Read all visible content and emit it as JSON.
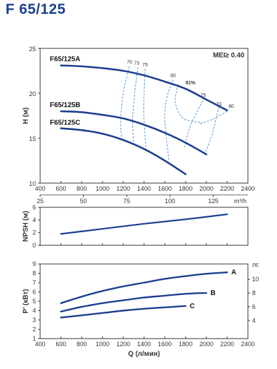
{
  "title": "F 65/125",
  "colors": {
    "curve": "#1a3f8f",
    "efficiency": "#3a8fd6",
    "frame": "#333333"
  },
  "chart_data": [
    {
      "type": "line",
      "id": "head",
      "xlabel": "",
      "ylabel": "H (м)",
      "xlim": [
        400,
        2400
      ],
      "ylim": [
        10,
        25
      ],
      "xticks": [
        400,
        600,
        800,
        1000,
        1200,
        1400,
        1600,
        1800,
        2000,
        2200,
        2400
      ],
      "yticks": [
        10,
        15,
        20,
        25
      ],
      "secondary_x": {
        "label": "m³/h",
        "range": [
          25,
          145
        ],
        "ticks": [
          25,
          50,
          75,
          100,
          125
        ]
      },
      "annotation": "MEI≥ 0.40",
      "series": [
        {
          "name": "F65/125A",
          "x": [
            600,
            800,
            1000,
            1200,
            1400,
            1600,
            1800,
            2000,
            2200
          ],
          "y": [
            23.1,
            23.0,
            22.8,
            22.5,
            22.0,
            21.3,
            20.5,
            19.3,
            18.1
          ]
        },
        {
          "name": "F65/125B",
          "x": [
            600,
            800,
            1000,
            1200,
            1400,
            1600,
            1800,
            2000
          ],
          "y": [
            18.0,
            17.9,
            17.6,
            17.2,
            16.5,
            15.6,
            14.5,
            13.2
          ]
        },
        {
          "name": "F65/125C",
          "x": [
            600,
            800,
            1000,
            1200,
            1400,
            1600,
            1800
          ],
          "y": [
            16.1,
            15.9,
            15.5,
            14.8,
            13.8,
            12.5,
            11.0
          ]
        }
      ],
      "efficiency_contours": [
        {
          "label": "70",
          "x": [
            1260,
            1200,
            1175,
            1185
          ],
          "y": [
            23.0,
            20.0,
            17.0,
            14.9
          ]
        },
        {
          "label": "73",
          "x": [
            1340,
            1310,
            1290,
            1300
          ],
          "y": [
            22.9,
            20.0,
            17.0,
            14.2
          ]
        },
        {
          "label": "75",
          "x": [
            1410,
            1400,
            1400,
            1420
          ],
          "y": [
            22.7,
            20.0,
            17.0,
            13.5
          ]
        },
        {
          "label": "80",
          "x": [
            1680,
            1620,
            1600,
            1640
          ],
          "y": [
            21.5,
            19.5,
            17.0,
            12.5
          ]
        },
        {
          "label": "81%",
          "x": [
            1730,
            1700,
            1780,
            1960
          ],
          "y": [
            21.0,
            19.0,
            17.2,
            16.7
          ]
        },
        {
          "label": "75",
          "x": [
            1980,
            1850,
            1790
          ],
          "y": [
            19.5,
            16.5,
            14.0
          ]
        },
        {
          "label": "73",
          "x": [
            2120,
            2050,
            1980
          ],
          "y": [
            18.5,
            15.2,
            13.2
          ]
        },
        {
          "label": "80",
          "x": [
            2200,
            2060,
            1940
          ],
          "y": [
            18.0,
            17.1,
            16.6
          ]
        }
      ]
    },
    {
      "type": "line",
      "id": "npsh",
      "ylabel": "NPSH (м)",
      "xlim": [
        400,
        2400
      ],
      "ylim": [
        0,
        6
      ],
      "yticks": [
        0,
        2,
        4,
        6
      ],
      "series": [
        {
          "name": "",
          "x": [
            600,
            1000,
            1400,
            1800,
            2200
          ],
          "y": [
            1.8,
            2.6,
            3.4,
            4.1,
            4.9
          ]
        }
      ]
    },
    {
      "type": "line",
      "id": "power",
      "xlabel": "Q (л/мин)",
      "ylabel": "P’ (кВт)",
      "xlim": [
        400,
        2400
      ],
      "ylim": [
        1,
        9
      ],
      "xticks": [
        400,
        600,
        800,
        1000,
        1200,
        1400,
        1600,
        1800,
        2000,
        2200,
        2400
      ],
      "yticks": [
        1,
        2,
        3,
        4,
        5,
        6,
        7,
        8,
        9
      ],
      "secondary_y": {
        "label": "лс",
        "range": [
          1.36,
          12.24
        ],
        "ticks": [
          4,
          6,
          8,
          10
        ]
      },
      "series": [
        {
          "name": "A",
          "x": [
            600,
            800,
            1000,
            1200,
            1400,
            1600,
            1800,
            2000,
            2200
          ],
          "y": [
            4.8,
            5.5,
            6.1,
            6.6,
            7.0,
            7.4,
            7.7,
            7.95,
            8.1
          ]
        },
        {
          "name": "B",
          "x": [
            600,
            800,
            1000,
            1200,
            1400,
            1600,
            1800,
            2000
          ],
          "y": [
            3.9,
            4.4,
            4.8,
            5.1,
            5.4,
            5.6,
            5.8,
            5.9
          ]
        },
        {
          "name": "C",
          "x": [
            600,
            800,
            1000,
            1200,
            1400,
            1600,
            1800
          ],
          "y": [
            3.25,
            3.5,
            3.75,
            4.0,
            4.2,
            4.35,
            4.5
          ]
        }
      ]
    }
  ]
}
